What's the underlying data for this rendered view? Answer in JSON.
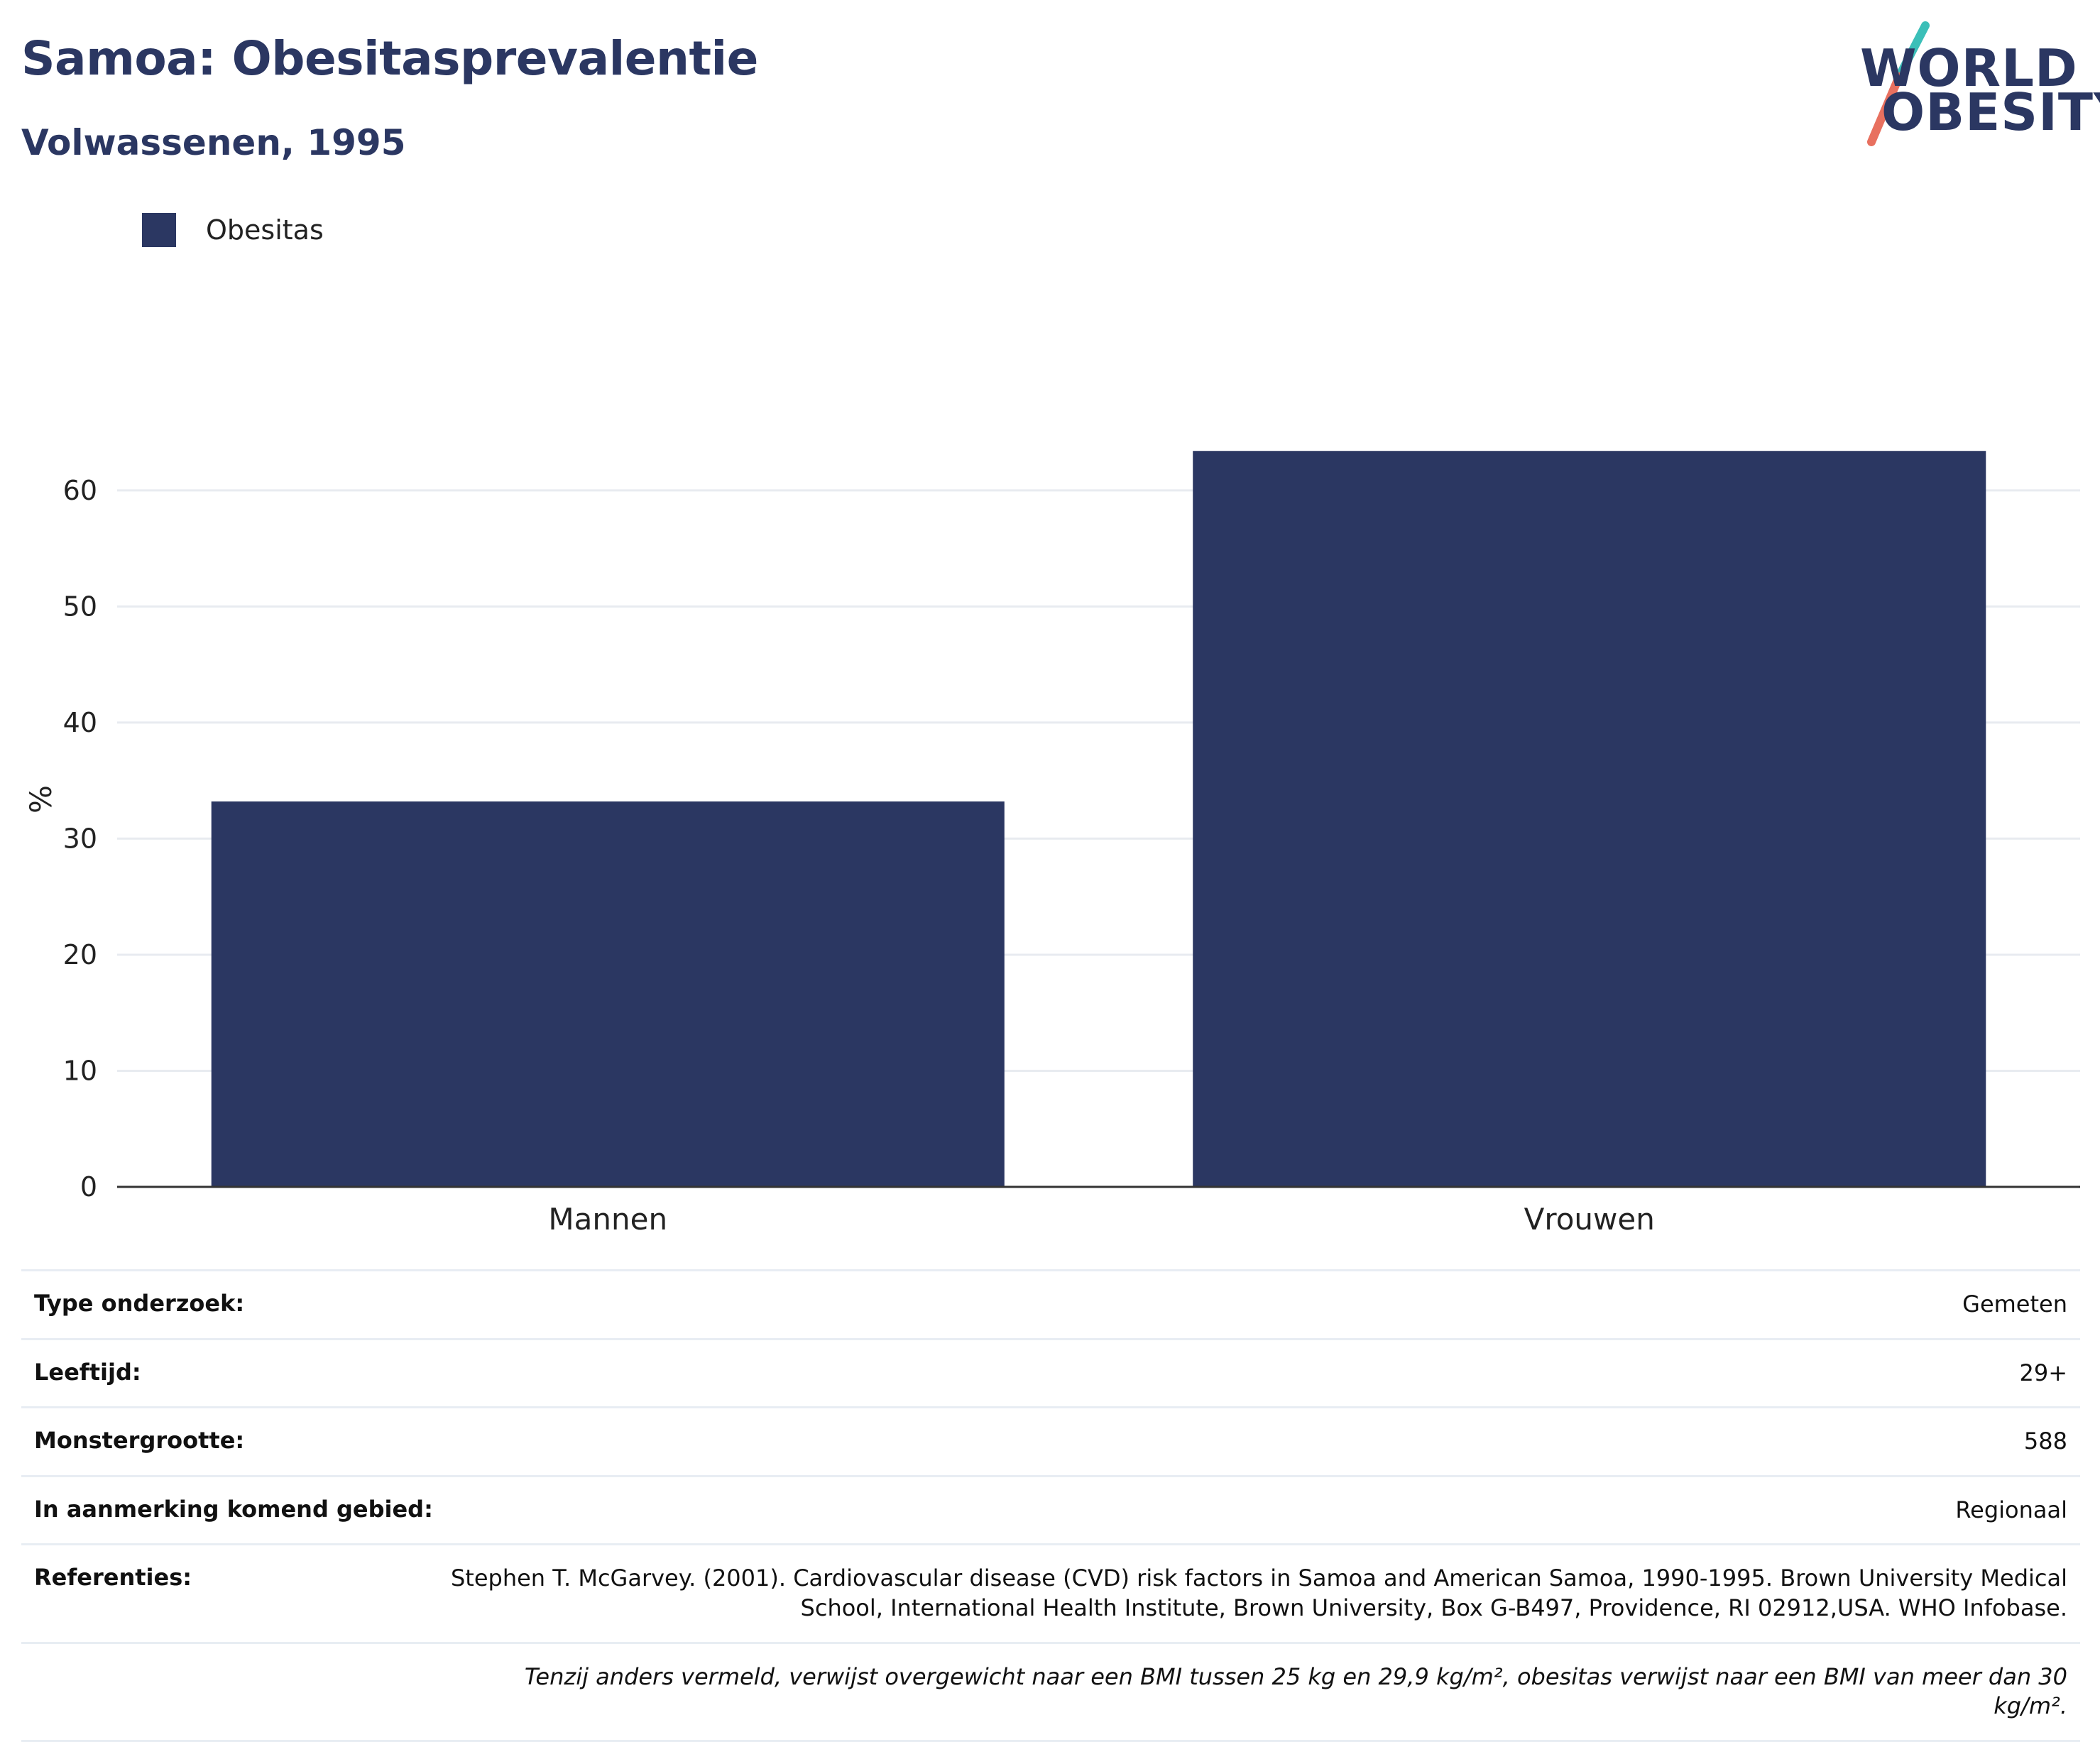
{
  "header": {
    "title": "Samoa: Obesitasprevalentie",
    "subtitle": "Volwassenen, 1995"
  },
  "logo": {
    "line1": "WORLD",
    "line2": "OBESITY",
    "colors": {
      "text": "#2b3762",
      "teal": "#3bbfb8",
      "coral": "#e8705f"
    }
  },
  "legend": {
    "label": "Obesitas",
    "color": "#2b3762"
  },
  "chart_data": {
    "type": "bar",
    "categories": [
      "Mannen",
      "Vrouwen"
    ],
    "series": [
      {
        "name": "Obesitas",
        "values": [
          33.2,
          63.4
        ],
        "color": "#2b3762"
      }
    ],
    "ylabel": "%",
    "xlabel": "",
    "ylim": [
      0,
      68
    ],
    "yticks": [
      0,
      10,
      20,
      30,
      40,
      50,
      60
    ],
    "grid": true
  },
  "info": {
    "rows": [
      {
        "key": "Type onderzoek:",
        "value": "Gemeten"
      },
      {
        "key": "Leeftijd:",
        "value": "29+"
      },
      {
        "key": "Monstergrootte:",
        "value": "588"
      },
      {
        "key": "In aanmerking komend gebied:",
        "value": "Regionaal"
      },
      {
        "key": "Referenties:",
        "value": "Stephen T. McGarvey. (2001). Cardiovascular disease (CVD) risk factors in Samoa and American Samoa, 1990-1995. Brown University Medical School, International Health Institute, Brown University, Box G-B497, Providence, RI 02912,USA. WHO Infobase."
      }
    ],
    "note": "Tenzij anders vermeld, verwijst overgewicht naar een BMI tussen 25 kg en 29,9 kg/m², obesitas verwijst naar een BMI van meer dan 30 kg/m²."
  }
}
